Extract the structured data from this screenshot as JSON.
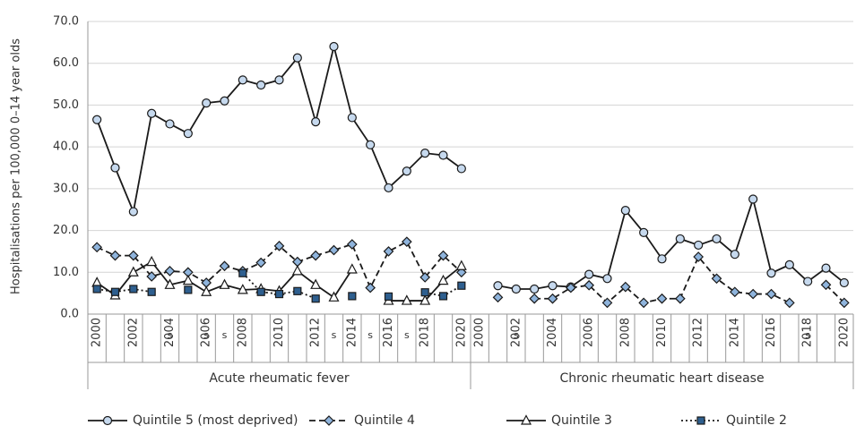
{
  "chart_data": {
    "type": "line",
    "y_label": "Hospitalisations per 100,000 0–14 year olds",
    "ylim": [
      0,
      70
    ],
    "yticks": [
      {
        "value": 0,
        "label": "0.0"
      },
      {
        "value": 10,
        "label": "10.0"
      },
      {
        "value": 20,
        "label": "20.0"
      },
      {
        "value": 30,
        "label": "30.0"
      },
      {
        "value": 40,
        "label": "40.0"
      },
      {
        "value": 50,
        "label": "50.0"
      },
      {
        "value": 60,
        "label": "60.0"
      },
      {
        "value": 70,
        "label": "70.0"
      }
    ],
    "grid": true,
    "categories": [
      {
        "group": "Acute rheumatic fever",
        "years": [
          "2000",
          null,
          "2002",
          null,
          "2004",
          null,
          "2006",
          null,
          "2008",
          null,
          "2010",
          null,
          "2012",
          null,
          "2014",
          null,
          "2016",
          null,
          "2018",
          null,
          "2020"
        ]
      },
      {
        "group": "Chronic rheumatic heart disease",
        "years": [
          "2000",
          null,
          "2002",
          null,
          "2004",
          null,
          "2006",
          null,
          "2008",
          null,
          "2010",
          null,
          "2012",
          null,
          "2014",
          null,
          "2016",
          null,
          "2018",
          null,
          "2020"
        ]
      }
    ],
    "series": [
      {
        "name": "Quintile 5 (most deprived)",
        "color": "#1a1a1a",
        "marker": "circle",
        "marker_fill": "#c6d9ee",
        "dash": "solid",
        "values": [
          [
            46.5,
            35,
            24.5,
            48,
            45.5,
            43.2,
            50.5,
            51,
            56,
            54.8,
            56,
            61.3,
            46,
            64,
            47,
            40.5,
            30.2,
            34.2,
            38.5,
            38,
            34.8
          ],
          [
            null,
            6.8,
            6,
            6,
            6.8,
            6.5,
            9.5,
            8.5,
            24.8,
            19.5,
            13.2,
            18,
            16.5,
            18,
            14.3,
            27.5,
            9.8,
            11.8,
            7.8,
            11,
            7.5
          ]
        ]
      },
      {
        "name": "Quintile 4",
        "color": "#1a1a1a",
        "marker": "diamond",
        "marker_fill": "#8fb4dc",
        "dash": "dashed",
        "values": [
          [
            16,
            14,
            14,
            9,
            10.3,
            10,
            7.5,
            11.5,
            10.3,
            12.3,
            16.3,
            12.5,
            14,
            15.3,
            16.7,
            6.3,
            15,
            17.3,
            8.8,
            14,
            10
          ],
          [
            null,
            4,
            null,
            3.7,
            3.7,
            6.3,
            6.9,
            2.7,
            6.5,
            2.7,
            3.7,
            3.7,
            13.7,
            8.5,
            5.3,
            4.8,
            4.8,
            2.7,
            null,
            7,
            2.7
          ]
        ]
      },
      {
        "name": "Quintile 3",
        "color": "#1a1a1a",
        "marker": "triangle",
        "marker_fill": "#ffffff",
        "dash": "solid",
        "values": [
          [
            7.5,
            4.5,
            10,
            12.5,
            7,
            8,
            5.3,
            7,
            5.8,
            6,
            5.5,
            10.3,
            7,
            4,
            10.7,
            null,
            3.2,
            3.2,
            3.2,
            8,
            11.5
          ],
          [
            null,
            null,
            null,
            null,
            null,
            null,
            null,
            null,
            null,
            null,
            null,
            null,
            null,
            null,
            null,
            null,
            null,
            null,
            null,
            null,
            null
          ]
        ]
      },
      {
        "name": "Quintile 2",
        "color": "#1a1a1a",
        "marker": "square",
        "marker_fill": "#2e5f8f",
        "dash": "dotted",
        "values": [
          [
            6,
            5.3,
            6,
            5.3,
            null,
            5.8,
            null,
            null,
            9.8,
            5.3,
            4.8,
            5.5,
            3.7,
            null,
            4.3,
            null,
            4.2,
            null,
            5.2,
            4.3,
            6.8
          ],
          [
            null,
            null,
            null,
            null,
            null,
            null,
            null,
            null,
            null,
            null,
            null,
            null,
            null,
            null,
            null,
            null,
            null,
            null,
            null,
            null,
            null
          ]
        ]
      }
    ],
    "annotations": [
      {
        "text": "s",
        "group": 0,
        "category": 4
      },
      {
        "text": "s",
        "group": 0,
        "category": 6
      },
      {
        "text": "s",
        "group": 0,
        "category": 7
      },
      {
        "text": "s",
        "group": 0,
        "category": 13
      },
      {
        "text": "s",
        "group": 0,
        "category": 15
      },
      {
        "text": "s",
        "group": 0,
        "category": 17
      },
      {
        "text": "s",
        "group": 1,
        "category": 2
      },
      {
        "text": "s",
        "group": 1,
        "category": 18
      }
    ]
  }
}
